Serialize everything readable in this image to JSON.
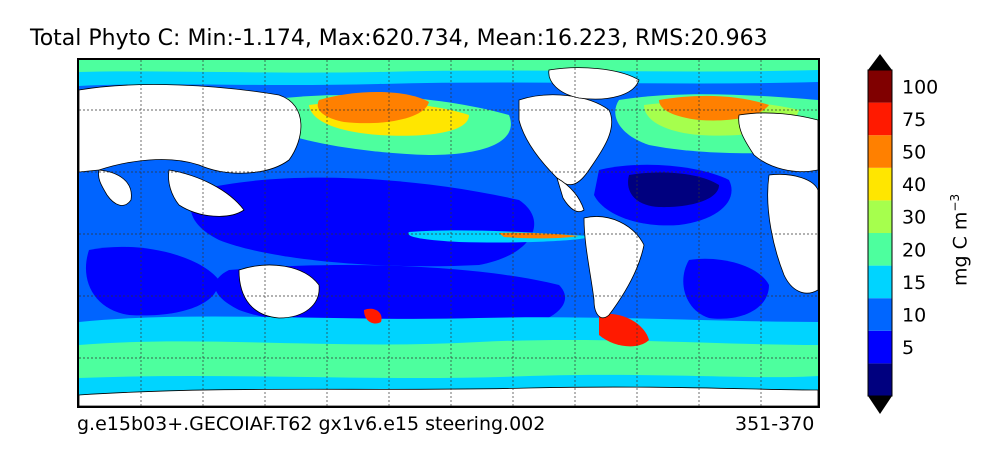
{
  "title": "Total Phyto C: Min:-1.174, Max:620.734, Mean:16.223, RMS:20.963",
  "footer": {
    "case_name": "g.e15b03+.GECOIAF.T62 gx1v6.e15 steering.002",
    "year_range": "351-370"
  },
  "colorbar": {
    "units_base": "mg C m",
    "units_exponent": "−3",
    "extend": "both",
    "levels": [
      {
        "label": "",
        "color": "#00007f"
      },
      {
        "label": "5",
        "color": "#0000ff"
      },
      {
        "label": "10",
        "color": "#0066ff"
      },
      {
        "label": "15",
        "color": "#00d4ff"
      },
      {
        "label": "20",
        "color": "#4dff9e"
      },
      {
        "label": "30",
        "color": "#a6ff4d"
      },
      {
        "label": "40",
        "color": "#ffe600"
      },
      {
        "label": "50",
        "color": "#ff8000"
      },
      {
        "label": "75",
        "color": "#ff1a00"
      },
      {
        "label": "100",
        "color": "#800000"
      }
    ],
    "under_color": "#000000",
    "over_color": "#000000"
  },
  "map": {
    "grid_lines": true,
    "land_color": "#ffffff",
    "ocean_base_color": "#0064ff"
  }
}
